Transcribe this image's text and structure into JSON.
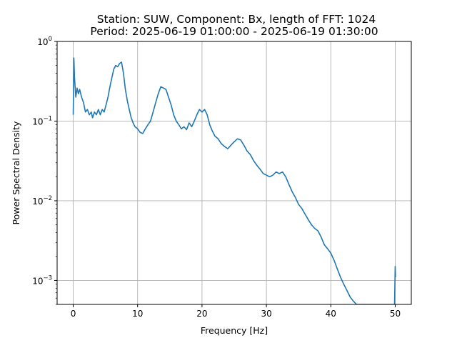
{
  "chart_data": {
    "type": "line",
    "title_line1": "Station: SUW, Component: Bx, length of FFT: 1024",
    "title_line2": "Period: 2025-06-19 01:00:00 - 2025-06-19 01:30:00",
    "xlabel": "Frequency [Hz]",
    "ylabel": "Power Spectral Density",
    "xlim": [
      -2.5,
      52.5
    ],
    "ylim": [
      0.0005,
      1
    ],
    "yscale": "log",
    "grid": true,
    "x_ticks": [
      0,
      10,
      20,
      30,
      40,
      50
    ],
    "x_tick_labels": [
      "0",
      "10",
      "20",
      "30",
      "40",
      "50"
    ],
    "y_ticks": [
      0.001,
      0.01,
      0.1,
      1
    ],
    "y_tick_labels": [
      {
        "base": "10",
        "exp": "−3"
      },
      {
        "base": "10",
        "exp": "−2"
      },
      {
        "base": "10",
        "exp": "−1"
      },
      {
        "base": "10",
        "exp": "0"
      }
    ],
    "series": [
      {
        "color": "#1f77b4",
        "x": [
          0.0,
          0.1,
          0.2,
          0.4,
          0.6,
          0.8,
          1.0,
          1.3,
          1.6,
          1.9,
          2.2,
          2.5,
          2.8,
          3.0,
          3.3,
          3.6,
          3.9,
          4.2,
          4.5,
          4.8,
          5.1,
          5.4,
          5.7,
          6.0,
          6.3,
          6.6,
          6.9,
          7.2,
          7.5,
          7.8,
          8.1,
          8.4,
          8.7,
          9.0,
          9.3,
          9.6,
          10.0,
          10.4,
          10.8,
          11.2,
          11.6,
          12.0,
          12.4,
          12.8,
          13.2,
          13.6,
          14.0,
          14.4,
          14.8,
          15.2,
          15.6,
          16.0,
          16.4,
          16.8,
          17.2,
          17.6,
          18.0,
          18.4,
          18.8,
          19.2,
          19.6,
          20.0,
          20.4,
          20.8,
          21.2,
          21.6,
          22.0,
          22.5,
          23.0,
          23.5,
          24.0,
          24.5,
          25.0,
          25.5,
          26.0,
          26.5,
          27.0,
          27.5,
          28.0,
          28.5,
          29.0,
          29.5,
          30.0,
          30.5,
          31.0,
          31.5,
          32.0,
          32.5,
          33.0,
          33.5,
          34.0,
          34.5,
          35.0,
          35.5,
          36.0,
          36.5,
          37.0,
          37.5,
          38.0,
          38.5,
          39.0,
          39.5,
          40.0,
          40.5,
          41.0,
          41.5,
          42.0,
          42.5,
          43.0,
          43.5,
          44.0,
          44.3,
          49.9,
          50.0,
          50.05
        ],
        "y": [
          0.12,
          0.62,
          0.35,
          0.2,
          0.26,
          0.22,
          0.25,
          0.2,
          0.17,
          0.13,
          0.14,
          0.12,
          0.13,
          0.11,
          0.13,
          0.12,
          0.14,
          0.12,
          0.14,
          0.13,
          0.16,
          0.2,
          0.27,
          0.35,
          0.45,
          0.5,
          0.48,
          0.53,
          0.55,
          0.4,
          0.25,
          0.18,
          0.14,
          0.11,
          0.095,
          0.085,
          0.08,
          0.072,
          0.07,
          0.08,
          0.09,
          0.1,
          0.13,
          0.17,
          0.22,
          0.27,
          0.26,
          0.25,
          0.2,
          0.16,
          0.12,
          0.1,
          0.09,
          0.08,
          0.085,
          0.078,
          0.095,
          0.085,
          0.1,
          0.12,
          0.14,
          0.13,
          0.14,
          0.12,
          0.09,
          0.075,
          0.065,
          0.06,
          0.052,
          0.048,
          0.045,
          0.05,
          0.055,
          0.06,
          0.058,
          0.05,
          0.042,
          0.038,
          0.032,
          0.028,
          0.025,
          0.022,
          0.021,
          0.02,
          0.021,
          0.023,
          0.022,
          0.023,
          0.02,
          0.016,
          0.013,
          0.011,
          0.009,
          0.008,
          0.0068,
          0.0058,
          0.005,
          0.0045,
          0.0042,
          0.0035,
          0.0028,
          0.0025,
          0.0022,
          0.0018,
          0.0014,
          0.0011,
          0.0009,
          0.00075,
          0.00062,
          0.00055,
          0.0005,
          0.0005,
          0.0005,
          0.0015,
          0.0011
        ]
      }
    ]
  }
}
